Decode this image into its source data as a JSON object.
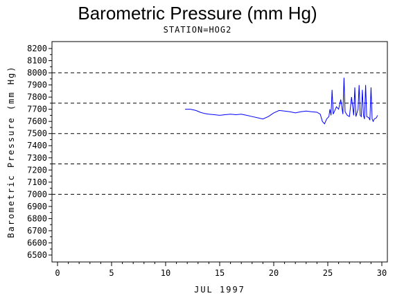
{
  "chart_data": {
    "type": "line",
    "title": "Barometric Pressure (mm Hg)",
    "subtitle": "STATION=HOG2",
    "xlabel": "JUL 1997",
    "ylabel": "Barometric Pressure (mm Hg)",
    "xlim": [
      0,
      30
    ],
    "ylim": [
      6500,
      8200
    ],
    "x_ticks": [
      0,
      5,
      10,
      15,
      20,
      25,
      30
    ],
    "y_ticks": [
      6500,
      6600,
      6700,
      6800,
      6900,
      7000,
      7100,
      7200,
      7300,
      7400,
      7500,
      7600,
      7700,
      7800,
      7900,
      8000,
      8100,
      8200
    ],
    "reference_lines": [
      7000,
      7250,
      7500,
      7750,
      8000
    ],
    "grid": false,
    "line_color": "#0000ff",
    "series": [
      {
        "x": [
          11.8,
          12.3,
          12.8,
          13.2,
          13.6,
          14.0,
          14.5,
          15.0,
          15.5,
          16.0,
          16.5,
          17.0,
          17.5,
          18.0,
          18.5,
          19.0,
          19.5,
          20.0,
          20.5,
          21.0,
          21.5,
          22.0,
          22.5,
          23.0,
          23.5,
          24.0,
          24.3,
          24.5,
          24.7,
          24.9,
          25.1,
          25.2,
          25.3,
          25.4,
          25.5,
          25.6,
          25.8,
          26.0,
          26.2,
          26.4,
          26.5,
          26.6,
          26.8,
          27.0,
          27.2,
          27.4,
          27.5,
          27.6,
          27.8,
          27.9,
          28.0,
          28.1,
          28.2,
          28.3,
          28.4,
          28.5,
          28.6,
          28.8,
          28.9,
          29.0,
          29.1,
          29.2,
          29.3,
          29.5,
          29.6
        ],
        "y": [
          7700,
          7700,
          7690,
          7675,
          7665,
          7660,
          7655,
          7650,
          7655,
          7660,
          7655,
          7660,
          7650,
          7640,
          7630,
          7620,
          7640,
          7670,
          7690,
          7685,
          7680,
          7670,
          7680,
          7685,
          7680,
          7675,
          7660,
          7600,
          7580,
          7620,
          7640,
          7700,
          7650,
          7860,
          7660,
          7680,
          7720,
          7700,
          7780,
          7660,
          7960,
          7680,
          7650,
          7640,
          7800,
          7650,
          7880,
          7640,
          7700,
          7900,
          7650,
          7640,
          7860,
          7650,
          7620,
          7900,
          7640,
          7630,
          7610,
          7880,
          7620,
          7600,
          7620,
          7630,
          7650
        ]
      }
    ]
  }
}
